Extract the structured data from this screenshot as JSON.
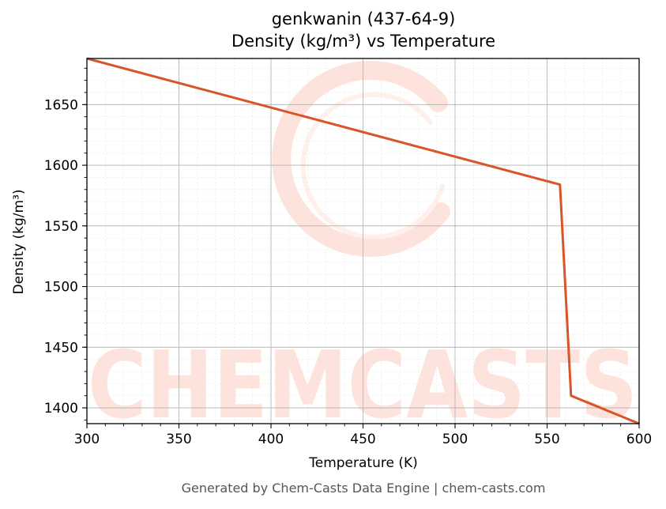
{
  "chart_data": {
    "type": "line",
    "title": "genkwanin (437-64-9)",
    "subtitle": "Density (kg/m³) vs Temperature",
    "xlabel": "Temperature (K)",
    "ylabel": "Density (kg/m³)",
    "xlim": [
      300,
      600
    ],
    "ylim": [
      1387,
      1688
    ],
    "xticks": [
      300,
      350,
      400,
      450,
      500,
      550,
      600
    ],
    "yticks": [
      1400,
      1450,
      1500,
      1550,
      1600,
      1650
    ],
    "grid": true,
    "series": [
      {
        "color": "#d95427",
        "x": [
          300,
          557,
          563,
          600
        ],
        "y": [
          1688,
          1584,
          1410,
          1387
        ]
      }
    ]
  },
  "watermark": {
    "text": "CHEMCASTS",
    "color": "#fde3dc"
  },
  "footer": "Generated by Chem-Casts Data Engine | chem-casts.com"
}
